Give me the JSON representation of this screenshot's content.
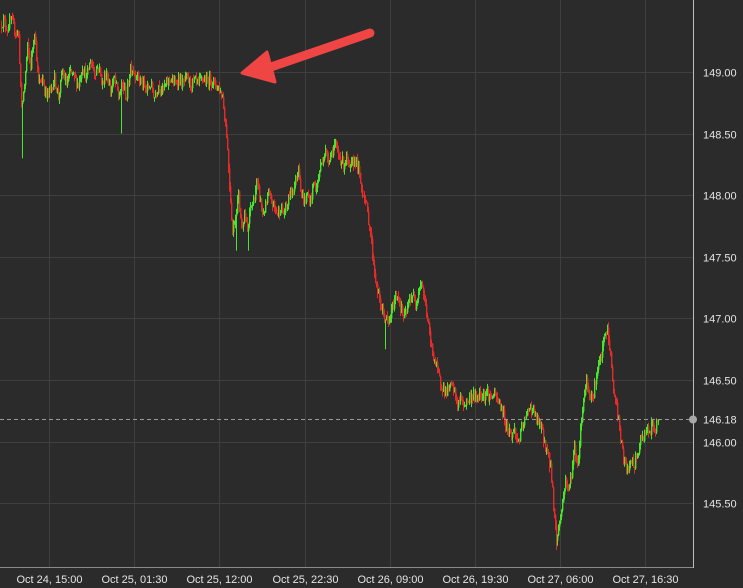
{
  "chart_data": {
    "type": "candlestick",
    "title": "",
    "xlabel": "",
    "ylabel": "",
    "ylim": [
      145.1,
      149.55
    ],
    "y_ticks": [
      "145.50",
      "146.00",
      "146.50",
      "147.00",
      "147.50",
      "148.00",
      "148.50",
      "149.00"
    ],
    "x_ticks": [
      "Oct 24, 15:00",
      "Oct 25, 01:30",
      "Oct 25, 12:00",
      "Oct 25, 22:30",
      "Oct 26, 09:00",
      "Oct 26, 19:30",
      "Oct 27, 06:00",
      "Oct 27, 16:30"
    ],
    "current_price": "146.18",
    "grid": true,
    "colors": {
      "up": "#47e62b",
      "down": "#e62a2a",
      "background": "#2a2b2a",
      "grid": "#3e403e",
      "arrow": "#f04545"
    },
    "close_path": [
      [
        0,
        149.38
      ],
      [
        3,
        149.42
      ],
      [
        7,
        149.35
      ],
      [
        10,
        149.42
      ],
      [
        14,
        149.35
      ],
      [
        18,
        149.3
      ],
      [
        21,
        148.7
      ],
      [
        24,
        148.9
      ],
      [
        27,
        149.2
      ],
      [
        30,
        149.05
      ],
      [
        34,
        149.35
      ],
      [
        38,
        148.9
      ],
      [
        42,
        148.95
      ],
      [
        46,
        148.8
      ],
      [
        50,
        148.85
      ],
      [
        54,
        148.95
      ],
      [
        58,
        148.8
      ],
      [
        62,
        149.0
      ],
      [
        66,
        148.9
      ],
      [
        70,
        149.0
      ],
      [
        74,
        148.95
      ],
      [
        78,
        148.9
      ],
      [
        82,
        149.05
      ],
      [
        86,
        148.95
      ],
      [
        90,
        149.1
      ],
      [
        94,
        149.0
      ],
      [
        98,
        149.05
      ],
      [
        102,
        148.9
      ],
      [
        106,
        149.0
      ],
      [
        110,
        148.85
      ],
      [
        114,
        148.95
      ],
      [
        118,
        148.8
      ],
      [
        122,
        148.9
      ],
      [
        126,
        148.8
      ],
      [
        130,
        149.05
      ],
      [
        134,
        149.0
      ],
      [
        138,
        148.95
      ],
      [
        142,
        148.9
      ],
      [
        146,
        148.85
      ],
      [
        150,
        148.9
      ],
      [
        154,
        148.8
      ],
      [
        158,
        148.9
      ],
      [
        162,
        148.85
      ],
      [
        166,
        148.9
      ],
      [
        170,
        148.95
      ],
      [
        174,
        148.9
      ],
      [
        178,
        148.95
      ],
      [
        182,
        148.9
      ],
      [
        186,
        148.95
      ],
      [
        190,
        148.9
      ],
      [
        194,
        148.92
      ],
      [
        198,
        148.9
      ],
      [
        202,
        148.95
      ],
      [
        206,
        148.92
      ],
      [
        210,
        148.95
      ],
      [
        214,
        148.9
      ],
      [
        218,
        148.88
      ],
      [
        222,
        148.8
      ],
      [
        226,
        148.5
      ],
      [
        229,
        148.1
      ],
      [
        232,
        147.7
      ],
      [
        235,
        147.85
      ],
      [
        238,
        148.0
      ],
      [
        241,
        147.75
      ],
      [
        244,
        147.85
      ],
      [
        247,
        147.7
      ],
      [
        250,
        147.9
      ],
      [
        253,
        147.95
      ],
      [
        256,
        148.1
      ],
      [
        259,
        148.0
      ],
      [
        262,
        147.85
      ],
      [
        265,
        147.9
      ],
      [
        268,
        148.0
      ],
      [
        271,
        147.95
      ],
      [
        274,
        147.9
      ],
      [
        277,
        147.85
      ],
      [
        280,
        147.9
      ],
      [
        283,
        147.85
      ],
      [
        286,
        147.9
      ],
      [
        289,
        148.0
      ],
      [
        292,
        148.05
      ],
      [
        295,
        148.1
      ],
      [
        298,
        148.25
      ],
      [
        301,
        148.0
      ],
      [
        304,
        147.95
      ],
      [
        307,
        148.0
      ],
      [
        310,
        147.95
      ],
      [
        313,
        148.1
      ],
      [
        316,
        148.05
      ],
      [
        319,
        148.2
      ],
      [
        322,
        148.3
      ],
      [
        325,
        148.35
      ],
      [
        328,
        148.3
      ],
      [
        331,
        148.35
      ],
      [
        334,
        148.4
      ],
      [
        337,
        148.35
      ],
      [
        340,
        148.3
      ],
      [
        343,
        148.25
      ],
      [
        346,
        148.3
      ],
      [
        349,
        148.2
      ],
      [
        352,
        148.25
      ],
      [
        355,
        148.3
      ],
      [
        358,
        148.2
      ],
      [
        361,
        148.05
      ],
      [
        364,
        148.0
      ],
      [
        367,
        147.85
      ],
      [
        370,
        147.7
      ],
      [
        373,
        147.45
      ],
      [
        376,
        147.25
      ],
      [
        379,
        147.15
      ],
      [
        382,
        147.05
      ],
      [
        385,
        147.0
      ],
      [
        388,
        146.95
      ],
      [
        391,
        147.05
      ],
      [
        394,
        147.15
      ],
      [
        397,
        147.2
      ],
      [
        400,
        147.1
      ],
      [
        403,
        147.0
      ],
      [
        406,
        147.05
      ],
      [
        409,
        147.15
      ],
      [
        412,
        147.2
      ],
      [
        415,
        147.1
      ],
      [
        418,
        147.25
      ],
      [
        421,
        147.3
      ],
      [
        424,
        147.15
      ],
      [
        427,
        147.0
      ],
      [
        430,
        146.8
      ],
      [
        433,
        146.7
      ],
      [
        436,
        146.6
      ],
      [
        439,
        146.5
      ],
      [
        442,
        146.45
      ],
      [
        445,
        146.4
      ],
      [
        448,
        146.42
      ],
      [
        451,
        146.45
      ],
      [
        454,
        146.4
      ],
      [
        457,
        146.3
      ],
      [
        460,
        146.35
      ],
      [
        463,
        146.3
      ],
      [
        466,
        146.32
      ],
      [
        469,
        146.35
      ],
      [
        472,
        146.38
      ],
      [
        475,
        146.35
      ],
      [
        478,
        146.38
      ],
      [
        481,
        146.4
      ],
      [
        484,
        146.38
      ],
      [
        487,
        146.4
      ],
      [
        490,
        146.35
      ],
      [
        493,
        146.38
      ],
      [
        496,
        146.35
      ],
      [
        499,
        146.3
      ],
      [
        502,
        146.25
      ],
      [
        505,
        146.15
      ],
      [
        508,
        146.1
      ],
      [
        511,
        146.05
      ],
      [
        514,
        146.1
      ],
      [
        517,
        146.0
      ],
      [
        520,
        146.05
      ],
      [
        523,
        146.15
      ],
      [
        526,
        146.2
      ],
      [
        529,
        146.3
      ],
      [
        532,
        146.25
      ],
      [
        535,
        146.2
      ],
      [
        538,
        146.15
      ],
      [
        541,
        146.1
      ],
      [
        544,
        146.0
      ],
      [
        547,
        145.9
      ],
      [
        550,
        145.8
      ],
      [
        553,
        145.5
      ],
      [
        556,
        145.2
      ],
      [
        559,
        145.35
      ],
      [
        562,
        145.5
      ],
      [
        565,
        145.7
      ],
      [
        568,
        145.6
      ],
      [
        571,
        145.75
      ],
      [
        574,
        145.95
      ],
      [
        577,
        145.8
      ],
      [
        580,
        146.1
      ],
      [
        583,
        146.35
      ],
      [
        586,
        146.5
      ],
      [
        589,
        146.4
      ],
      [
        592,
        146.35
      ],
      [
        595,
        146.5
      ],
      [
        598,
        146.6
      ],
      [
        601,
        146.7
      ],
      [
        604,
        146.85
      ],
      [
        607,
        146.9
      ],
      [
        610,
        146.7
      ],
      [
        613,
        146.4
      ],
      [
        616,
        146.3
      ],
      [
        619,
        146.1
      ],
      [
        622,
        145.9
      ],
      [
        625,
        145.8
      ],
      [
        628,
        145.75
      ],
      [
        631,
        145.85
      ],
      [
        634,
        145.8
      ],
      [
        637,
        145.9
      ],
      [
        640,
        146.0
      ],
      [
        643,
        146.05
      ],
      [
        646,
        146.1
      ],
      [
        649,
        146.05
      ],
      [
        652,
        146.15
      ],
      [
        655,
        146.1
      ],
      [
        658,
        146.2
      ]
    ],
    "spikes": [
      [
        22,
        148.3
      ],
      [
        121,
        148.5
      ],
      [
        236,
        147.55
      ],
      [
        248,
        147.55
      ],
      [
        385,
        146.75
      ],
      [
        556,
        145.12
      ]
    ],
    "annotations": [
      {
        "type": "arrow",
        "description": "pointer-to-price-drop"
      }
    ]
  }
}
